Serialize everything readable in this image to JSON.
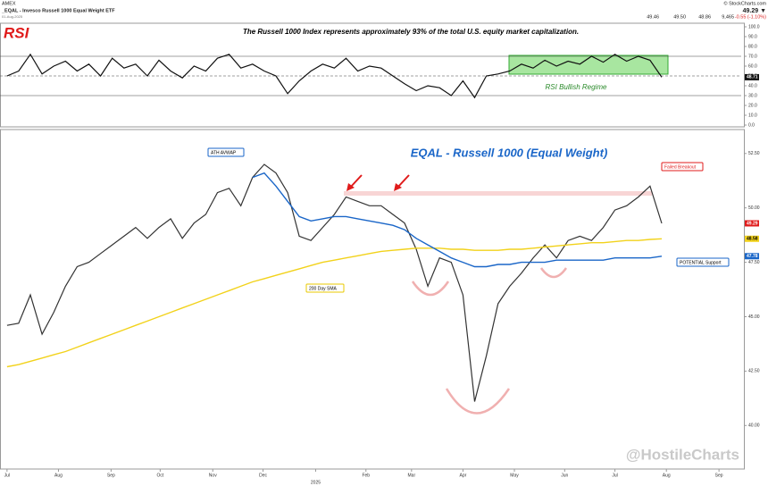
{
  "header": {
    "exchange": "AMEX",
    "symbol": "_EQAL - Invesco Russell 1000 Equal Weight ETF",
    "date": "01-Aug-2025",
    "source": "© StockCharts.com",
    "price": "49.29 ▼",
    "change": "-0.55 (-1.10%)",
    "ohlcv": [
      "49.46",
      "49.50",
      "48.86",
      "9,465"
    ]
  },
  "chart_data": [
    {
      "type": "line",
      "title": "RSI",
      "subtitle": "The Russell 1000 Index represents approximately 93% of the total U.S. equity market capitalization.",
      "regime_label": "RSI Bullish Regime",
      "x": [
        0,
        1,
        2,
        3,
        4,
        5,
        6,
        7,
        8,
        9,
        10,
        11,
        12,
        13,
        14,
        15,
        16,
        17,
        18,
        19,
        20,
        21,
        22,
        23,
        24,
        25,
        26,
        27,
        28,
        29,
        30,
        31,
        32,
        33,
        34,
        35,
        36,
        37,
        38,
        39,
        40,
        41,
        42,
        43,
        44,
        45,
        46,
        47,
        48,
        49,
        50,
        51,
        52,
        53,
        54,
        55,
        56
      ],
      "xlim": [
        -0.6,
        62.8
      ],
      "ylim": [
        0,
        100
      ],
      "yticks": [
        {
          "value": 0,
          "label": "0.0"
        },
        {
          "value": 10,
          "label": "10.0"
        },
        {
          "value": 20,
          "label": "20.0"
        },
        {
          "value": 30,
          "label": "30.0"
        },
        {
          "value": 40,
          "label": "40.0"
        },
        {
          "value": 50,
          "label": "50.0"
        },
        {
          "value": 60,
          "label": "60.0"
        },
        {
          "value": 70,
          "label": "70.0"
        },
        {
          "value": 80,
          "label": "80.0"
        },
        {
          "value": 90,
          "label": "90.0"
        },
        {
          "value": 100,
          "label": "100.0"
        }
      ],
      "levels": [
        70,
        50,
        30
      ],
      "series": [
        {
          "name": "RSI(14)",
          "color": "#111111",
          "values": [
            50,
            55,
            72,
            52,
            60,
            65,
            55,
            62,
            50,
            68,
            58,
            62,
            50,
            66,
            55,
            48,
            60,
            55,
            68,
            72,
            58,
            62,
            55,
            50,
            32,
            45,
            55,
            62,
            58,
            68,
            55,
            60,
            58,
            50,
            42,
            35,
            40,
            38,
            30,
            45,
            28,
            50,
            52,
            55,
            62,
            58,
            66,
            60,
            65,
            62,
            70,
            64,
            72,
            65,
            70,
            66,
            48.71
          ]
        }
      ]
    },
    {
      "type": "line",
      "title": "EQAL - Russell 1000 (Equal Weight)",
      "watermark": "@HostileCharts",
      "annotations": [
        "ATH AVWAP",
        "200 Day SMA",
        "Failed Breakout",
        "POTENTIAL Support"
      ],
      "x": [
        0,
        1,
        2,
        3,
        4,
        5,
        6,
        7,
        8,
        9,
        10,
        11,
        12,
        13,
        14,
        15,
        16,
        17,
        18,
        19,
        20,
        21,
        22,
        23,
        24,
        25,
        26,
        27,
        28,
        29,
        30,
        31,
        32,
        33,
        34,
        35,
        36,
        37,
        38,
        39,
        40,
        41,
        42,
        43,
        44,
        45,
        46,
        47,
        48,
        49,
        50,
        51,
        52,
        53,
        54,
        55,
        56
      ],
      "xlim": [
        -0.6,
        62.8
      ],
      "xticks": [
        {
          "value": 0,
          "label": "Jul"
        },
        {
          "value": 4.4,
          "label": "Aug"
        },
        {
          "value": 8.9,
          "label": "Sep"
        },
        {
          "value": 13.1,
          "label": "Oct"
        },
        {
          "value": 17.6,
          "label": "Nov"
        },
        {
          "value": 21.9,
          "label": "Dec"
        },
        {
          "value": 26.4,
          "label": "2025"
        },
        {
          "value": 30.7,
          "label": "Feb"
        },
        {
          "value": 34.6,
          "label": "Mar"
        },
        {
          "value": 39,
          "label": "Apr"
        },
        {
          "value": 43.4,
          "label": "May"
        },
        {
          "value": 47.7,
          "label": "Jun"
        },
        {
          "value": 52,
          "label": "Jul"
        },
        {
          "value": 56.4,
          "label": "Aug"
        },
        {
          "value": 60.9,
          "label": "Sep"
        }
      ],
      "ylim": [
        38.0,
        53.6
      ],
      "yticks": [
        {
          "value": 40,
          "label": "40.00"
        },
        {
          "value": 42.5,
          "label": "42.50"
        },
        {
          "value": 45,
          "label": "45.00"
        },
        {
          "value": 47.5,
          "label": "47.50"
        },
        {
          "value": 50,
          "label": "50.00"
        },
        {
          "value": 52.5,
          "label": "52.50"
        }
      ],
      "series": [
        {
          "name": "EQAL",
          "color": "#333333",
          "values": [
            44.6,
            44.7,
            46.0,
            44.2,
            45.2,
            46.4,
            47.3,
            47.5,
            47.9,
            48.3,
            48.7,
            49.1,
            48.6,
            49.1,
            49.5,
            48.6,
            49.3,
            49.7,
            50.7,
            50.9,
            50.1,
            51.4,
            52.0,
            51.6,
            50.7,
            48.7,
            48.5,
            49.1,
            49.7,
            50.5,
            50.3,
            50.1,
            50.1,
            49.7,
            49.3,
            48.1,
            46.4,
            47.7,
            47.5,
            46.0,
            41.1,
            43.2,
            45.6,
            46.4,
            47.0,
            47.7,
            48.3,
            47.7,
            48.5,
            48.7,
            48.5,
            49.1,
            49.9,
            50.1,
            50.5,
            51.0,
            49.29
          ]
        },
        {
          "name": "200 Day SMA",
          "color": "#f2d21b",
          "values": [
            42.7,
            42.8,
            42.95,
            43.1,
            43.25,
            43.4,
            43.6,
            43.8,
            44.0,
            44.2,
            44.4,
            44.6,
            44.8,
            45.0,
            45.2,
            45.4,
            45.6,
            45.8,
            46.0,
            46.2,
            46.4,
            46.6,
            46.75,
            46.9,
            47.05,
            47.2,
            47.35,
            47.5,
            47.6,
            47.7,
            47.8,
            47.9,
            48.0,
            48.05,
            48.1,
            48.15,
            48.15,
            48.15,
            48.1,
            48.1,
            48.05,
            48.05,
            48.05,
            48.1,
            48.1,
            48.15,
            48.2,
            48.25,
            48.3,
            48.35,
            48.4,
            48.4,
            48.45,
            48.5,
            48.5,
            48.55,
            48.58
          ]
        },
        {
          "name": "ATH AVWAP",
          "color": "#1a66c8",
          "values": [
            null,
            null,
            null,
            null,
            null,
            null,
            null,
            null,
            null,
            null,
            null,
            null,
            null,
            null,
            null,
            null,
            null,
            null,
            null,
            null,
            null,
            51.4,
            51.6,
            51.0,
            50.3,
            49.6,
            49.4,
            49.5,
            49.6,
            49.6,
            49.5,
            49.4,
            49.3,
            49.2,
            49.0,
            48.6,
            48.3,
            48.0,
            47.7,
            47.5,
            47.3,
            47.3,
            47.4,
            47.4,
            47.5,
            47.5,
            47.5,
            47.6,
            47.6,
            47.6,
            47.6,
            47.6,
            47.7,
            47.7,
            47.7,
            47.7,
            47.78
          ]
        }
      ]
    }
  ]
}
